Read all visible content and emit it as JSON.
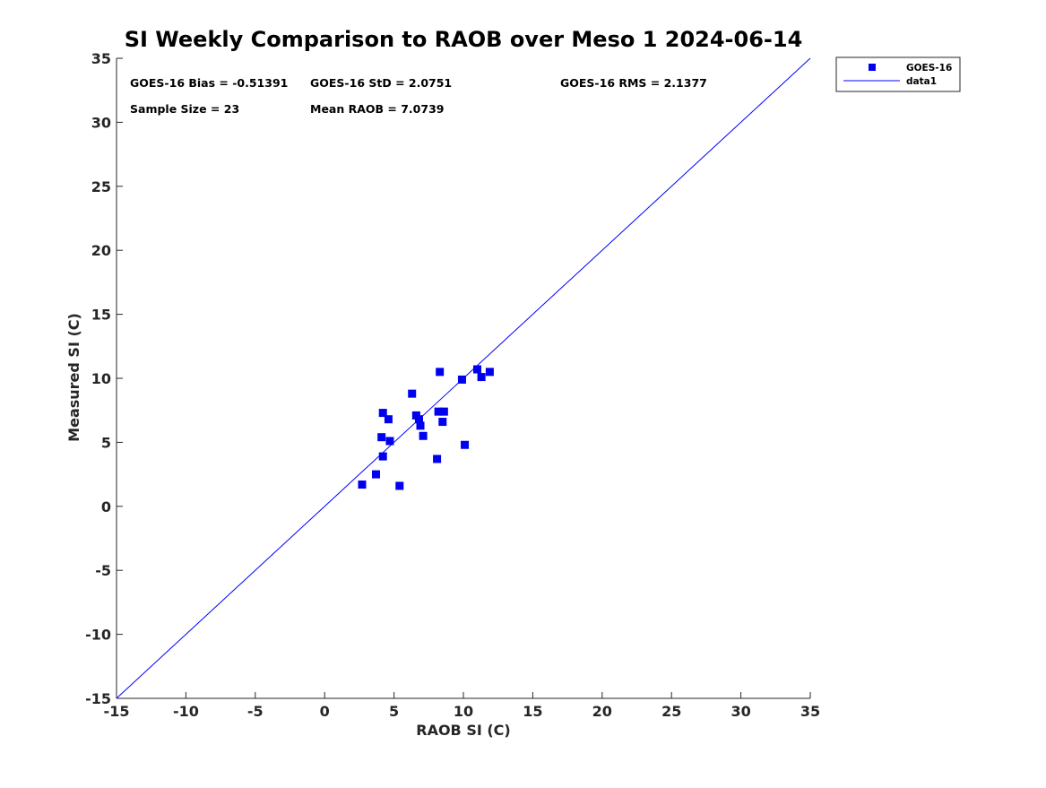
{
  "chart_data": {
    "type": "scatter",
    "title": "SI Weekly Comparison to RAOB over Meso 1 2024-06-14",
    "xlabel": "RAOB SI (C)",
    "ylabel": "Measured SI (C)",
    "xlim": [
      -15,
      35
    ],
    "ylim": [
      -15,
      35
    ],
    "xticks": [
      -15,
      -10,
      -5,
      0,
      5,
      10,
      15,
      20,
      25,
      30,
      35
    ],
    "yticks": [
      -15,
      -10,
      -5,
      0,
      5,
      10,
      15,
      20,
      25,
      30,
      35
    ],
    "grid": false,
    "legend_position": "outside-top-right",
    "series": [
      {
        "name": "GOES-16",
        "kind": "scatter",
        "marker": "square",
        "color": "#0000ee",
        "x": [
          2.7,
          3.7,
          4.1,
          4.2,
          4.2,
          4.6,
          4.7,
          5.4,
          6.3,
          6.6,
          6.8,
          6.9,
          7.1,
          8.1,
          8.2,
          8.3,
          8.5,
          8.6,
          9.9,
          10.1,
          11.0,
          11.3,
          11.9
        ],
        "y": [
          1.7,
          2.5,
          5.4,
          7.3,
          3.9,
          6.8,
          5.1,
          1.6,
          8.8,
          7.1,
          6.8,
          6.3,
          5.5,
          3.7,
          7.4,
          10.5,
          6.6,
          7.4,
          9.9,
          4.8,
          10.7,
          10.1,
          10.5
        ]
      },
      {
        "name": "data1",
        "kind": "line",
        "color": "#0000ff",
        "x": [
          -15,
          35
        ],
        "y": [
          -15,
          35
        ]
      }
    ],
    "annotations": {
      "bias": "GOES-16 Bias = -0.51391",
      "std": "GOES-16 StD = 2.0751",
      "rms": "GOES-16 RMS = 2.1377",
      "sample_size": "Sample Size = 23",
      "mean_raob": "Mean RAOB = 7.0739"
    }
  }
}
